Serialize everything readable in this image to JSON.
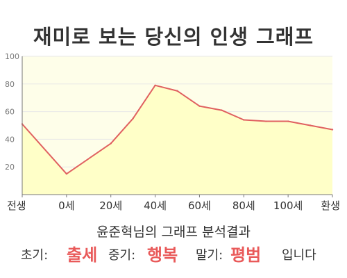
{
  "page": {
    "title": "재미로 보는 당신의 인생 그래프"
  },
  "chart_data": {
    "type": "area",
    "title": "재미로 보는 당신의 인생 그래프",
    "x": [
      -20,
      0,
      20,
      30,
      40,
      50,
      60,
      70,
      80,
      90,
      100,
      110,
      120
    ],
    "y": [
      51,
      15,
      37,
      55,
      79,
      75,
      64,
      61,
      54,
      53,
      53,
      50,
      47
    ],
    "x_tick_labels": [
      "전생",
      "0세",
      "20세",
      "40세",
      "60세",
      "80세",
      "100세",
      "환생"
    ],
    "x_tick_values": [
      -20,
      0,
      20,
      40,
      60,
      80,
      100,
      120
    ],
    "y_ticks": [
      "100",
      "80",
      "60",
      "40",
      "20"
    ],
    "y_tick_values": [
      100,
      80,
      60,
      40,
      20
    ],
    "xlim": [
      -20,
      120
    ],
    "ylim": [
      0,
      100
    ],
    "grid": true,
    "colors": {
      "line": "#e06060",
      "fill": "#ffffc8",
      "plot_bg": "#fefee9",
      "grid": "#e8e8e8",
      "axis": "#777777"
    }
  },
  "result": {
    "heading": "윤준혁님의 그래프 분석결과",
    "early_label": "초기:",
    "early_value": "출세",
    "mid_label": "중기:",
    "mid_value": "행복",
    "late_label": "말기:",
    "late_value": "평범",
    "suffix": "입니다"
  }
}
